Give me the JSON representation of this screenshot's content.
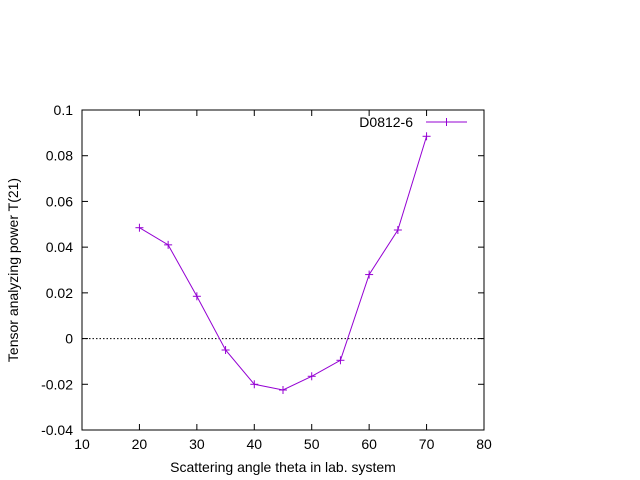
{
  "chart_data": {
    "type": "line",
    "title": "",
    "xlabel": "Scattering angle theta in lab. system",
    "ylabel": "Tensor analyzing power T(21)",
    "xlim": [
      10,
      80
    ],
    "ylim": [
      -0.04,
      0.1
    ],
    "x_ticks": [
      10,
      20,
      30,
      40,
      50,
      60,
      70,
      80
    ],
    "y_ticks": [
      -0.04,
      -0.02,
      0,
      0.02,
      0.04,
      0.06,
      0.08,
      0.1
    ],
    "x_tick_labels": [
      "10",
      "20",
      "30",
      "40",
      "50",
      "60",
      "70",
      "80"
    ],
    "y_tick_labels": [
      "-0.04",
      "-0.02",
      "0",
      "0.02",
      "0.04",
      "0.06",
      "0.08",
      "0.1"
    ],
    "grid": false,
    "zero_line": {
      "y": 0,
      "style": "dotted",
      "color": "#000000"
    },
    "legend_position": "top-right",
    "series": [
      {
        "name": "D0812-6",
        "color": "#9400d3",
        "marker": "plus",
        "x": [
          20,
          25,
          30,
          35,
          40,
          45,
          50,
          55,
          60,
          65,
          70
        ],
        "y": [
          0.0485,
          0.041,
          0.0185,
          -0.005,
          -0.02,
          -0.0225,
          -0.0165,
          -0.0095,
          0.028,
          0.0475,
          0.0885
        ]
      }
    ]
  }
}
